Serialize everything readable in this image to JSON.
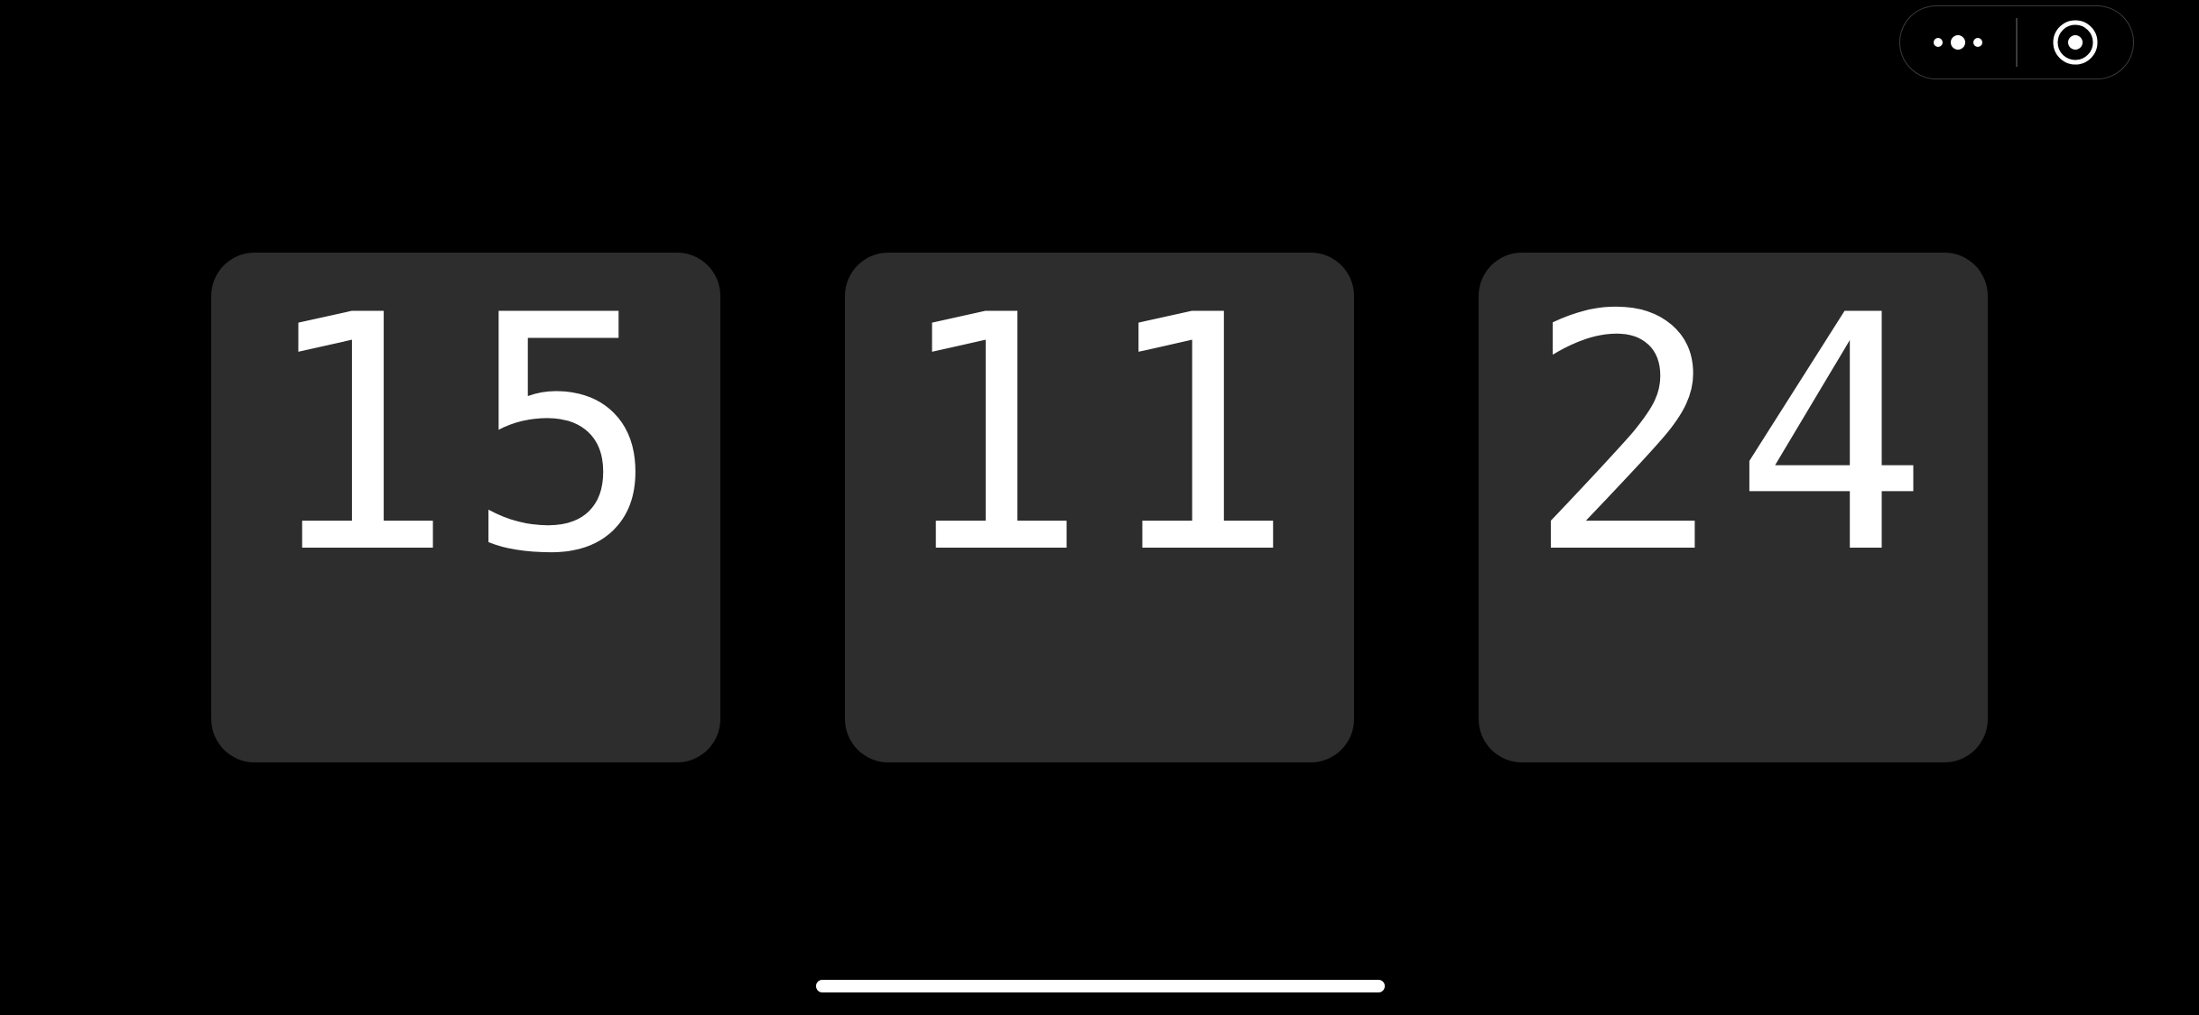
{
  "time": {
    "hours": "15",
    "minutes": "11",
    "seconds": "24"
  },
  "capsule": {
    "more_icon": "more-dots-icon",
    "close_icon": "target-circle-icon"
  },
  "colors": {
    "background": "#000000",
    "card": "#2d2d2d",
    "digit": "#ffffff"
  }
}
